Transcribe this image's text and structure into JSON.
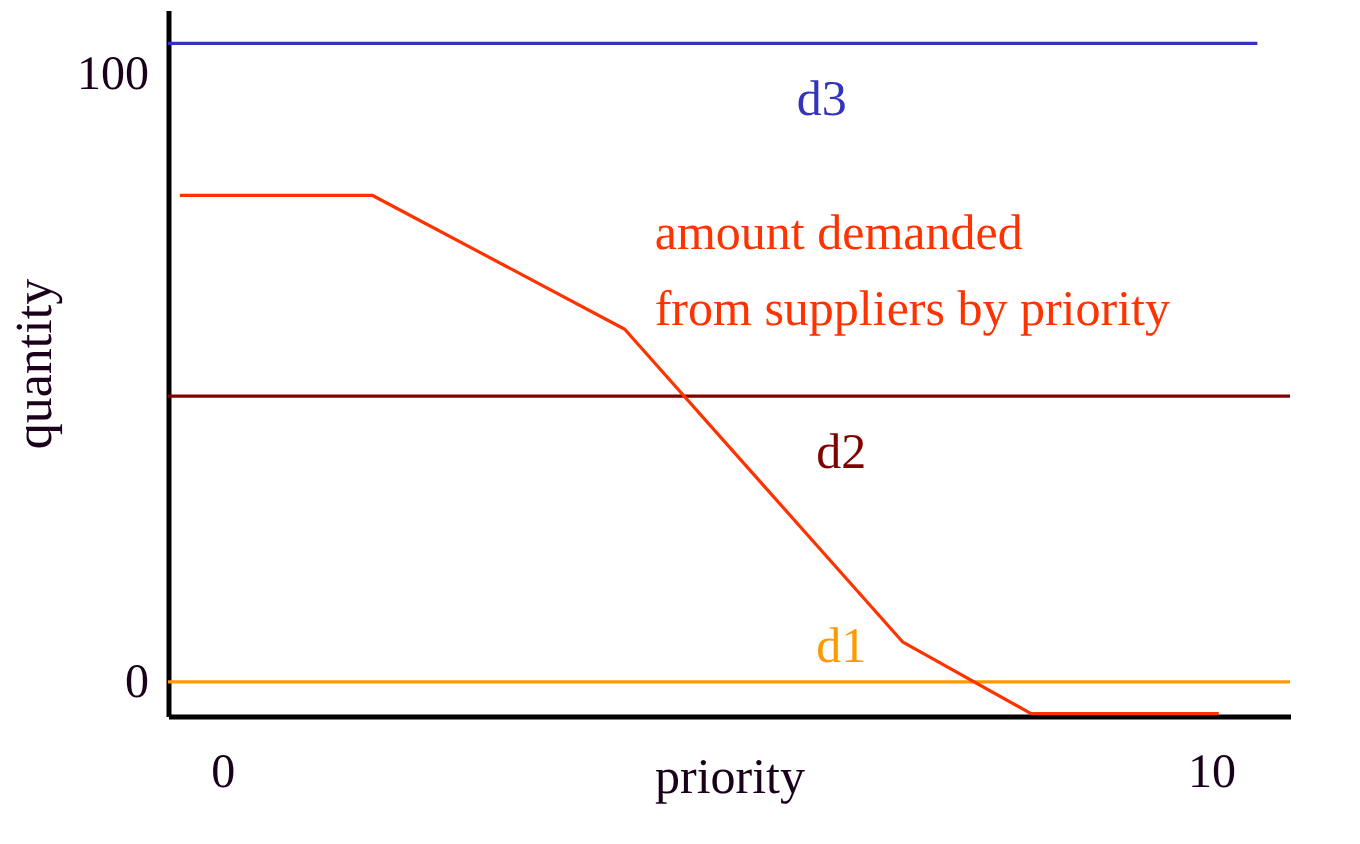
{
  "chart_data": {
    "type": "line",
    "xlabel": "priority",
    "ylabel": "quantity",
    "xlim": [
      -0.55,
      10.8
    ],
    "ylim": [
      -5.6,
      110.5
    ],
    "xticks": [
      0,
      10
    ],
    "yticks": [
      0,
      100
    ],
    "line_style": "solid",
    "series": [
      {
        "name": "d3",
        "color": "#3333bb",
        "x": [
          -0.55,
          10.47
        ],
        "values": [
          105,
          105
        ]
      },
      {
        "name": "d2",
        "color": "#800000",
        "x": [
          -0.55,
          10.8
        ],
        "values": [
          47,
          47
        ]
      },
      {
        "name": "d1",
        "color": "#ff9900",
        "x": [
          -0.55,
          10.8
        ],
        "values": [
          0,
          0
        ]
      },
      {
        "name": "amount demanded from suppliers by priority",
        "color": "#ff3300",
        "x": [
          -0.43,
          1.52,
          4.07,
          6.88,
          8.18,
          10.08
        ],
        "values": [
          80,
          80,
          58,
          6.6,
          -5.2,
          -5.2
        ]
      }
    ]
  }
}
